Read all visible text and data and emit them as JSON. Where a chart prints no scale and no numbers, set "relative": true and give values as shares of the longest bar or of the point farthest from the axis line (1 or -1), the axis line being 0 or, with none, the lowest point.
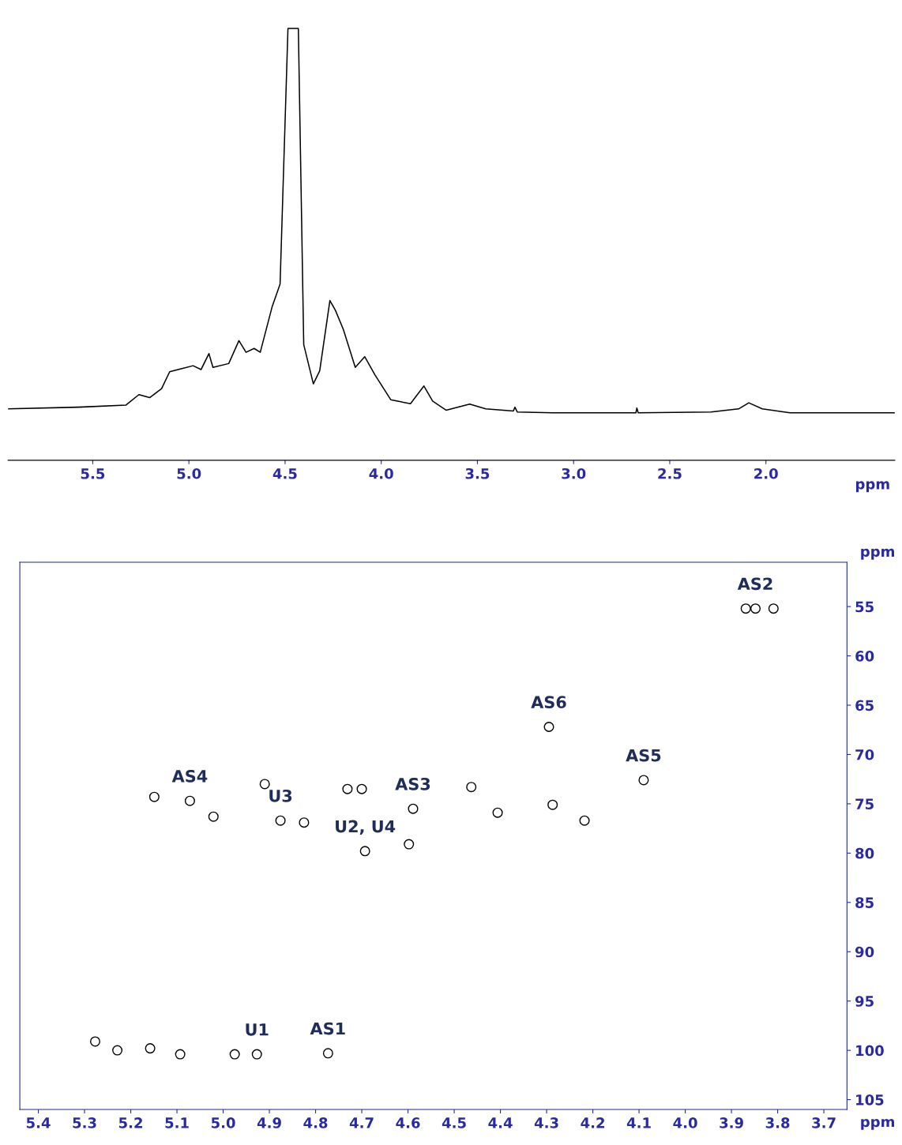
{
  "chart_data": [
    {
      "type": "line",
      "relative": true,
      "xlabel": "ppm",
      "xlim": [
        5.94,
        1.33
      ],
      "xticks": [
        5.5,
        {
          "value": 5,
          "label": "5.0"
        },
        4.5,
        {
          "value": 4,
          "label": "4.0"
        },
        3.5,
        {
          "value": 3,
          "label": "3.0"
        },
        2.5,
        {
          "value": 2,
          "label": "2.0"
        }
      ],
      "tick_labels": "x",
      "grid": false,
      "legend": false,
      "marker": "none",
      "line_style": "solid",
      "series": [
        {
          "color": "#000000",
          "x": [
            5.94,
            5.574,
            5.327,
            5.26,
            5.204,
            5.142,
            5.1,
            5.04,
            4.978,
            4.937,
            4.896,
            4.875,
            4.793,
            4.74,
            4.703,
            4.661,
            4.629,
            4.567,
            4.526,
            4.485,
            4.431,
            4.403,
            4.353,
            4.32,
            4.267,
            4.238,
            4.197,
            4.135,
            4.086,
            4.033,
            3.95,
            3.848,
            3.778,
            3.733,
            3.663,
            3.54,
            3.457,
            3.313,
            3.305,
            3.293,
            3.108,
            2.676,
            2.671,
            2.664,
            2.286,
            2.142,
            2.089,
            2.019,
            1.875,
            1.33
          ],
          "values": [
            0.119,
            0.123,
            0.128,
            0.152,
            0.145,
            0.166,
            0.205,
            0.212,
            0.219,
            0.21,
            0.247,
            0.215,
            0.224,
            0.277,
            0.25,
            0.259,
            0.25,
            0.356,
            0.408,
            1,
            1,
            0.268,
            0.177,
            0.207,
            0.37,
            0.347,
            0.303,
            0.215,
            0.24,
            0.198,
            0.14,
            0.131,
            0.172,
            0.137,
            0.116,
            0.13,
            0.119,
            0.114,
            0.123,
            0.112,
            0.11,
            0.11,
            0.121,
            0.11,
            0.112,
            0.119,
            0.133,
            0.119,
            0.11,
            0.11
          ]
        }
      ]
    },
    {
      "type": "scatter",
      "xlabel": "ppm",
      "ylabel": "ppm",
      "xlim": [
        5.44,
        3.65
      ],
      "ylim": [
        106,
        50.5
      ],
      "xticks": [
        5.4,
        5.3,
        5.2,
        5.1,
        {
          "value": 5,
          "label": "5.0"
        },
        4.9,
        4.8,
        4.7,
        4.6,
        4.5,
        4.4,
        4.3,
        4.2,
        4.1,
        {
          "value": 4,
          "label": "4.0"
        },
        3.9,
        3.8,
        3.7
      ],
      "yticks": [
        55,
        60,
        65,
        70,
        75,
        80,
        85,
        90,
        95,
        100,
        105
      ],
      "grid": false,
      "legend": false,
      "marker": "circle",
      "series": [
        {
          "color": "#000000",
          "x": [
            3.869,
            3.848,
            3.809,
            4.295,
            4.09,
            4.589,
            4.598,
            5.072,
            5.021,
            5.149,
            4.876,
            4.825,
            4.91,
            4.731,
            4.7,
            4.693,
            4.463,
            4.406,
            4.287,
            4.218,
            4.927,
            4.773,
            5.277,
            5.229,
            5.158,
            5.093,
            4.975
          ],
          "values": [
            55.2,
            55.2,
            55.2,
            67.2,
            72.6,
            75.5,
            79.1,
            74.7,
            76.3,
            74.3,
            76.7,
            76.9,
            73.0,
            73.5,
            73.5,
            79.8,
            73.3,
            75.9,
            75.1,
            76.7,
            100.4,
            100.3,
            99.1,
            100.0,
            99.8,
            100.4,
            100.4
          ]
        }
      ],
      "annotations": [
        {
          "text": "AS2",
          "x": 3.848,
          "y": 55.2
        },
        {
          "text": "AS6",
          "x": 4.295,
          "y": 67.2
        },
        {
          "text": "AS5",
          "x": 4.09,
          "y": 72.6
        },
        {
          "text": "AS3",
          "x": 4.589,
          "y": 75.5
        },
        {
          "text": "AS4",
          "x": 5.072,
          "y": 74.7
        },
        {
          "text": "U3",
          "x": 4.876,
          "y": 76.7
        },
        {
          "text": "U2, U4",
          "x": 4.693,
          "y": 79.8
        },
        {
          "text": "U1",
          "x": 4.927,
          "y": 100.4
        },
        {
          "text": "AS1",
          "x": 4.773,
          "y": 100.3
        }
      ]
    }
  ]
}
